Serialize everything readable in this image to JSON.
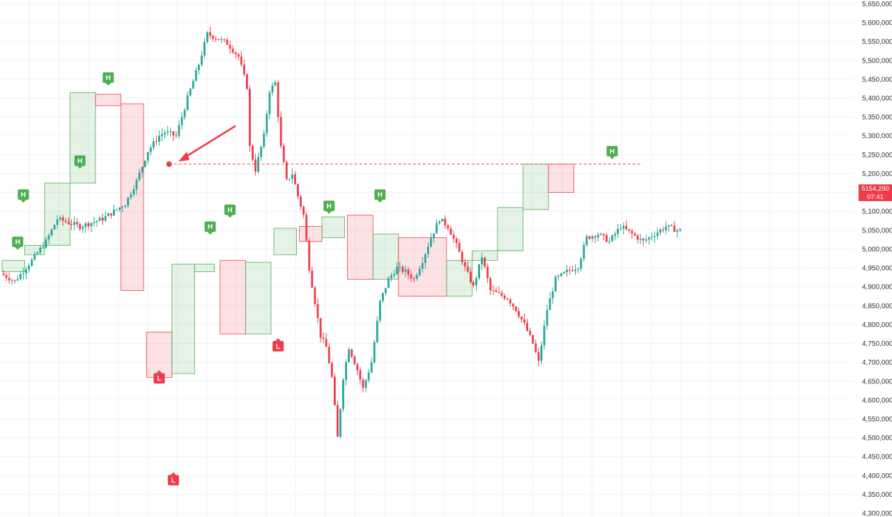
{
  "chart_data": {
    "type": "candlestick",
    "y_axis": {
      "min": 4290000,
      "max": 5660000,
      "ticks": [
        "5,650,000",
        "5,600,000",
        "5,550,000",
        "5,500,000",
        "5,450,000",
        "5,400,000",
        "5,350,000",
        "5,300,000",
        "5,250,000",
        "5,200,000",
        "5,150,000",
        "5,100,000",
        "5,050,000",
        "5,000,000",
        "4,950,000",
        "4,900,000",
        "4,850,000",
        "4,800,000",
        "4,750,000",
        "4,700,000",
        "4,650,000",
        "4,600,000",
        "4,550,000",
        "4,500,000",
        "4,450,000",
        "4,400,000",
        "4,350,000",
        "4,300,000"
      ],
      "tick_values": [
        5650000,
        5600000,
        5550000,
        5500000,
        5450000,
        5400000,
        5350000,
        5300000,
        5250000,
        5200000,
        5150000,
        5100000,
        5050000,
        5000000,
        4950000,
        4900000,
        4850000,
        4800000,
        4750000,
        4700000,
        4650000,
        4600000,
        4550000,
        4500000,
        4450000,
        4400000,
        4350000,
        4300000
      ]
    },
    "x_bars": 240,
    "grid": true,
    "price_path": [
      [
        0,
        4935000
      ],
      [
        5,
        4915000
      ],
      [
        10,
        4960000
      ],
      [
        16,
        5020000
      ],
      [
        20,
        5080000
      ],
      [
        24,
        5070000
      ],
      [
        28,
        5060000
      ],
      [
        32,
        5070000
      ],
      [
        36,
        5080000
      ],
      [
        40,
        5100000
      ],
      [
        44,
        5120000
      ],
      [
        48,
        5180000
      ],
      [
        52,
        5260000
      ],
      [
        56,
        5300000
      ],
      [
        58,
        5310000
      ],
      [
        62,
        5300000
      ],
      [
        66,
        5400000
      ],
      [
        70,
        5490000
      ],
      [
        73,
        5570000
      ],
      [
        76,
        5560000
      ],
      [
        80,
        5545000
      ],
      [
        84,
        5510000
      ],
      [
        87,
        5430000
      ],
      [
        88,
        5270000
      ],
      [
        90,
        5210000
      ],
      [
        93,
        5300000
      ],
      [
        95,
        5420000
      ],
      [
        97,
        5440000
      ],
      [
        99,
        5270000
      ],
      [
        101,
        5180000
      ],
      [
        103,
        5200000
      ],
      [
        105,
        5140000
      ],
      [
        107,
        5090000
      ],
      [
        109,
        4950000
      ],
      [
        111,
        4860000
      ],
      [
        113,
        4770000
      ],
      [
        115,
        4740000
      ],
      [
        117,
        4660000
      ],
      [
        119,
        4500000
      ],
      [
        121,
        4660000
      ],
      [
        123,
        4740000
      ],
      [
        126,
        4680000
      ],
      [
        128,
        4630000
      ],
      [
        131,
        4700000
      ],
      [
        134,
        4860000
      ],
      [
        137,
        4920000
      ],
      [
        140,
        4950000
      ],
      [
        143,
        4940000
      ],
      [
        146,
        4920000
      ],
      [
        149,
        4970000
      ],
      [
        152,
        5030000
      ],
      [
        155,
        5080000
      ],
      [
        158,
        5060000
      ],
      [
        161,
        5010000
      ],
      [
        164,
        4950000
      ],
      [
        167,
        4900000
      ],
      [
        170,
        4980000
      ],
      [
        173,
        4890000
      ],
      [
        176,
        4880000
      ],
      [
        179,
        4870000
      ],
      [
        182,
        4840000
      ],
      [
        185,
        4800000
      ],
      [
        188,
        4750000
      ],
      [
        190,
        4700000
      ],
      [
        193,
        4840000
      ],
      [
        196,
        4920000
      ],
      [
        200,
        4940000
      ],
      [
        204,
        4955000
      ],
      [
        207,
        5030000
      ],
      [
        211,
        5040000
      ],
      [
        215,
        5020000
      ],
      [
        219,
        5060000
      ],
      [
        223,
        5040000
      ],
      [
        227,
        5020000
      ],
      [
        231,
        5040000
      ],
      [
        235,
        5060000
      ],
      [
        239,
        5050000
      ]
    ],
    "annotations": [
      {
        "label": "H",
        "type": "swing-high",
        "bar": 7,
        "price": 5125000
      },
      {
        "label": "H",
        "type": "swing-high",
        "bar": 27,
        "price": 5215000
      },
      {
        "label": "H",
        "type": "swing-high",
        "bar": 37,
        "price": 5435000
      },
      {
        "label": "H",
        "type": "swing-high",
        "bar": 80,
        "price": 5085000
      },
      {
        "label": "H",
        "type": "swing-high",
        "bar": 73,
        "price": 5040000
      },
      {
        "label": "H",
        "type": "swing-high",
        "bar": 115,
        "price": 5095000
      },
      {
        "label": "H",
        "type": "swing-high",
        "bar": 133,
        "price": 5125000
      },
      {
        "label": "H",
        "type": "swing-high",
        "bar": 215,
        "price": 5240000
      },
      {
        "label": "H",
        "type": "swing-high",
        "bar": 5,
        "price": 5000000
      },
      {
        "label": "L",
        "type": "swing-low",
        "bar": 55,
        "price": 4675000
      },
      {
        "label": "L",
        "type": "swing-low",
        "bar": 60,
        "price": 4405000
      },
      {
        "label": "L",
        "type": "swing-low",
        "bar": 97,
        "price": 4760000
      }
    ],
    "marked_level": {
      "price": 5225000,
      "from_bar": 59,
      "to_bar": 226,
      "color": "#ef3b4a",
      "style": "dashed"
    },
    "last_price": {
      "price_text": "5154,290",
      "time_text": "07:41",
      "color": "#ef3b4a"
    }
  }
}
